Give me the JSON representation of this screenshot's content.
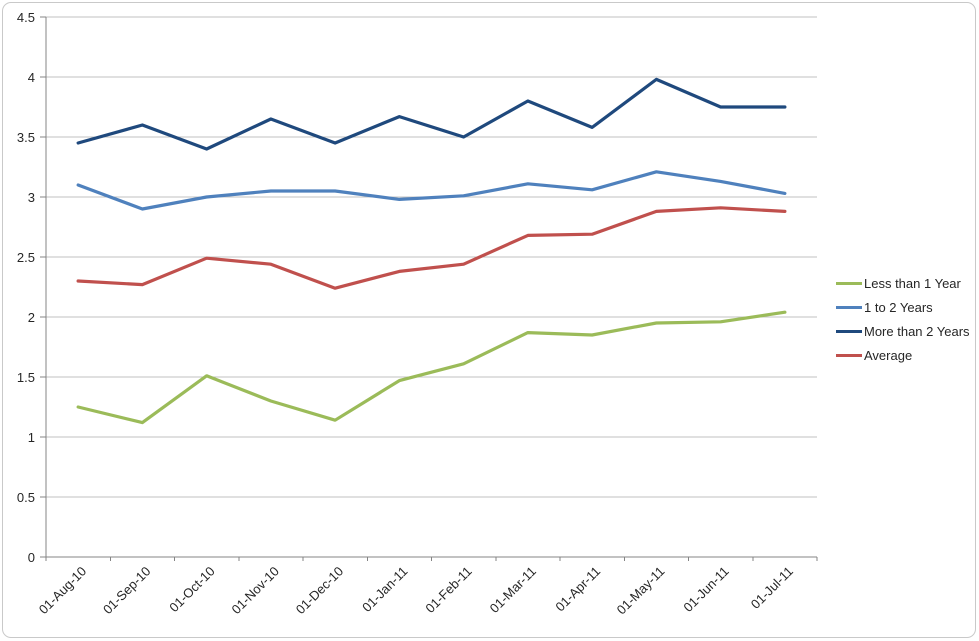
{
  "style": {
    "gridline": "#c2c2c2",
    "axis": "#848484",
    "text": "#262626",
    "frame_border": "#c9c9c9",
    "background": "#ffffff"
  },
  "chart_data": {
    "type": "line",
    "title": "",
    "xlabel": "",
    "ylabel": "",
    "ylim": [
      0,
      4.5
    ],
    "ytick_step": 0.5,
    "ytick_labels": [
      "0",
      "0.5",
      "1",
      "1.5",
      "2",
      "2.5",
      "3",
      "3.5",
      "4",
      "4.5"
    ],
    "grid": true,
    "legend_position": "right",
    "categories": [
      "01-Aug-10",
      "01-Sep-10",
      "01-Oct-10",
      "01-Nov-10",
      "01-Dec-10",
      "01-Jan-11",
      "01-Feb-11",
      "01-Mar-11",
      "01-Apr-11",
      "01-May-11",
      "01-Jun-11",
      "01-Jul-11"
    ],
    "series": [
      {
        "name": "Less than 1 Year",
        "color": "#9bbb59",
        "values": [
          1.25,
          1.12,
          1.51,
          1.3,
          1.14,
          1.47,
          1.61,
          1.87,
          1.85,
          1.95,
          1.96,
          2.04
        ]
      },
      {
        "name": "1 to 2 Years",
        "color": "#4f81bd",
        "values": [
          3.1,
          2.9,
          3.0,
          3.05,
          3.05,
          2.98,
          3.01,
          3.11,
          3.06,
          3.21,
          3.13,
          3.03
        ]
      },
      {
        "name": "More than 2 Years",
        "color": "#1f497d",
        "values": [
          3.45,
          3.6,
          3.4,
          3.65,
          3.45,
          3.67,
          3.5,
          3.8,
          3.58,
          3.98,
          3.75,
          3.75
        ]
      },
      {
        "name": "Average",
        "color": "#c0504d",
        "values": [
          2.3,
          2.27,
          2.49,
          2.44,
          2.24,
          2.38,
          2.44,
          2.68,
          2.69,
          2.88,
          2.91,
          2.88
        ]
      }
    ]
  }
}
